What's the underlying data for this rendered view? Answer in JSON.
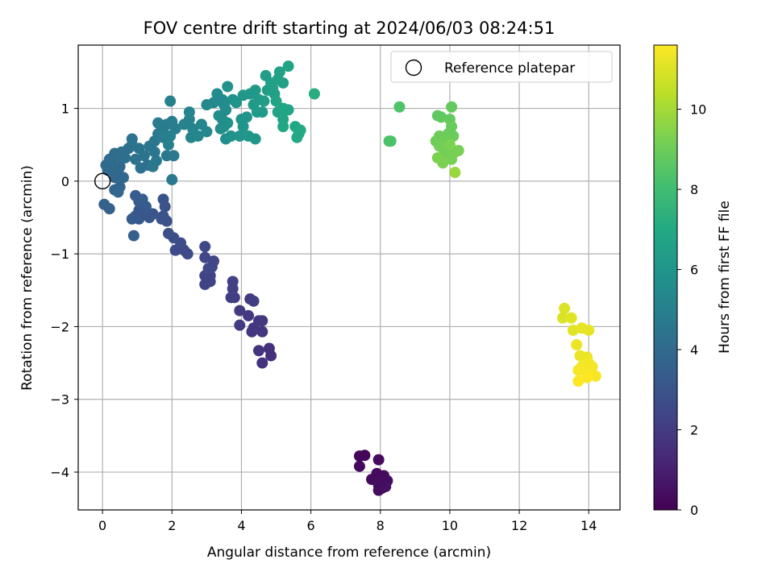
{
  "chart_data": {
    "type": "scatter",
    "title": "FOV centre drift starting at 2024/06/03 08:24:51",
    "xlabel": "Angular distance from reference (arcmin)",
    "ylabel": "Rotation from reference (arcmin)",
    "xlim": [
      -0.7,
      14.9
    ],
    "ylim": [
      -4.52,
      1.87
    ],
    "xticks": [
      0,
      2,
      4,
      6,
      8,
      10,
      12,
      14
    ],
    "yticks": [
      -4,
      -3,
      -2,
      -1,
      0,
      1
    ],
    "grid": true,
    "legend": {
      "placement": "top-right",
      "entries": [
        "Reference platepar"
      ]
    },
    "reference_point": {
      "x": 0,
      "y": 0
    },
    "colorbar": {
      "label": "Hours from first FF file",
      "colormap": "viridis",
      "range": [
        0,
        11.6
      ],
      "ticks": [
        0,
        2,
        4,
        6,
        8,
        10
      ]
    },
    "points": [
      [
        7.4,
        -3.78,
        0.2
      ],
      [
        7.55,
        -3.77,
        0.2
      ],
      [
        7.4,
        -3.92,
        0.3
      ],
      [
        7.95,
        -3.83,
        0.3
      ],
      [
        8.1,
        -4.05,
        0.35
      ],
      [
        7.85,
        -4.08,
        0.3
      ],
      [
        7.75,
        -4.1,
        0.35
      ],
      [
        8.2,
        -4.12,
        0.4
      ],
      [
        7.95,
        -4.18,
        0.4
      ],
      [
        8.05,
        -4.22,
        0.4
      ],
      [
        7.95,
        -4.25,
        0.35
      ],
      [
        8.15,
        -4.2,
        0.45
      ],
      [
        7.9,
        -4.02,
        0.3
      ],
      [
        8.0,
        -4.12,
        0.4
      ],
      [
        4.8,
        -2.3,
        1.6
      ],
      [
        4.85,
        -2.4,
        1.6
      ],
      [
        4.6,
        -2.5,
        1.7
      ],
      [
        4.5,
        -2.33,
        1.7
      ],
      [
        4.6,
        -2.07,
        1.8
      ],
      [
        4.35,
        -2.02,
        1.8
      ],
      [
        4.3,
        -2.07,
        1.8
      ],
      [
        4.5,
        -1.92,
        1.9
      ],
      [
        4.6,
        -1.92,
        1.9
      ],
      [
        4.2,
        -1.85,
        1.9
      ],
      [
        3.95,
        -1.98,
        2.0
      ],
      [
        3.95,
        -1.78,
        2.0
      ],
      [
        4.25,
        -1.62,
        2.0
      ],
      [
        4.35,
        -1.65,
        2.1
      ],
      [
        3.8,
        -1.6,
        2.1
      ],
      [
        3.7,
        -1.6,
        2.1
      ],
      [
        3.75,
        -1.48,
        2.2
      ],
      [
        3.75,
        -1.38,
        2.2
      ],
      [
        3.1,
        -1.3,
        2.3
      ],
      [
        3.1,
        -1.38,
        2.3
      ],
      [
        2.95,
        -1.3,
        2.3
      ],
      [
        2.95,
        -1.42,
        2.3
      ],
      [
        3.2,
        -1.1,
        2.4
      ],
      [
        3.15,
        -1.18,
        2.4
      ],
      [
        2.95,
        -1.05,
        2.4
      ],
      [
        3.05,
        -1.2,
        2.5
      ],
      [
        2.95,
        -0.9,
        2.5
      ],
      [
        2.45,
        -1.0,
        2.6
      ],
      [
        2.35,
        -0.95,
        2.6
      ],
      [
        2.1,
        -0.95,
        2.6
      ],
      [
        2.25,
        -0.85,
        2.7
      ],
      [
        2.05,
        -0.78,
        2.7
      ],
      [
        1.9,
        -0.72,
        2.8
      ],
      [
        1.85,
        -0.55,
        2.9
      ],
      [
        1.75,
        -0.48,
        2.9
      ],
      [
        1.7,
        -0.52,
        3.0
      ],
      [
        1.8,
        -0.35,
        2.9
      ],
      [
        1.75,
        -0.25,
        3.0
      ],
      [
        1.45,
        -0.45,
        3.1
      ],
      [
        1.35,
        -0.5,
        3.1
      ],
      [
        1.15,
        -0.45,
        3.2
      ],
      [
        1.05,
        -0.52,
        3.2
      ],
      [
        0.95,
        -0.48,
        3.3
      ],
      [
        0.85,
        -0.52,
        3.3
      ],
      [
        1.05,
        -0.4,
        3.2
      ],
      [
        1.25,
        -0.35,
        3.3
      ],
      [
        1.05,
        -0.28,
        3.3
      ],
      [
        0.95,
        -0.2,
        3.4
      ],
      [
        1.15,
        -0.25,
        3.4
      ],
      [
        0.9,
        -0.75,
        3.5
      ],
      [
        0.2,
        -0.38,
        3.6
      ],
      [
        0.05,
        -0.32,
        3.6
      ],
      [
        0.35,
        -0.12,
        3.7
      ],
      [
        0.5,
        -0.08,
        3.7
      ],
      [
        0.45,
        -0.15,
        3.8
      ],
      [
        0.35,
        0.05,
        3.8
      ],
      [
        0.45,
        0.12,
        3.9
      ],
      [
        0.6,
        0.05,
        3.9
      ],
      [
        0.5,
        0.2,
        3.9
      ],
      [
        0.3,
        0.22,
        4.0
      ],
      [
        0.15,
        0.15,
        4.0
      ],
      [
        0.1,
        0.22,
        4.0
      ],
      [
        0.2,
        0.3,
        4.1
      ],
      [
        0.35,
        0.38,
        4.1
      ],
      [
        0.45,
        0.35,
        4.1
      ],
      [
        0.55,
        0.4,
        4.2
      ],
      [
        0.65,
        0.32,
        4.2
      ],
      [
        0.75,
        0.45,
        4.2
      ],
      [
        0.85,
        0.5,
        4.3
      ],
      [
        0.95,
        0.3,
        4.3
      ],
      [
        1.1,
        0.18,
        4.3
      ],
      [
        1.3,
        0.22,
        4.3
      ],
      [
        1.2,
        0.35,
        4.4
      ],
      [
        1.05,
        0.45,
        4.4
      ],
      [
        0.85,
        0.58,
        4.4
      ],
      [
        1.35,
        0.48,
        4.5
      ],
      [
        1.5,
        0.55,
        4.5
      ],
      [
        1.5,
        0.4,
        4.5
      ],
      [
        1.55,
        0.28,
        4.6
      ],
      [
        1.45,
        0.2,
        4.6
      ],
      [
        1.85,
        0.35,
        4.6
      ],
      [
        2.05,
        0.35,
        4.7
      ],
      [
        2.0,
        0.02,
        4.7
      ],
      [
        1.6,
        0.65,
        4.7
      ],
      [
        1.75,
        0.68,
        4.8
      ],
      [
        1.6,
        0.8,
        4.8
      ],
      [
        1.85,
        0.78,
        4.8
      ],
      [
        2.0,
        0.82,
        4.9
      ],
      [
        1.75,
        0.6,
        4.9
      ],
      [
        2.1,
        0.72,
        4.9
      ],
      [
        1.95,
        0.62,
        5.0
      ],
      [
        1.9,
        0.5,
        5.0
      ],
      [
        1.95,
        1.1,
        5.0
      ],
      [
        2.35,
        0.78,
        5.1
      ],
      [
        2.5,
        0.85,
        5.1
      ],
      [
        2.5,
        0.95,
        5.2
      ],
      [
        2.6,
        0.72,
        5.2
      ],
      [
        2.55,
        0.6,
        5.2
      ],
      [
        2.75,
        0.62,
        5.3
      ],
      [
        2.85,
        0.78,
        5.3
      ],
      [
        3.0,
        0.68,
        5.3
      ],
      [
        3.0,
        1.05,
        5.4
      ],
      [
        3.2,
        1.08,
        5.4
      ],
      [
        3.3,
        1.2,
        5.5
      ],
      [
        3.45,
        1.12,
        5.5
      ],
      [
        3.5,
        1.05,
        5.5
      ],
      [
        3.55,
        0.98,
        5.6
      ],
      [
        3.45,
        0.85,
        5.6
      ],
      [
        3.35,
        0.9,
        5.6
      ],
      [
        3.4,
        0.72,
        5.7
      ],
      [
        3.5,
        0.75,
        5.7
      ],
      [
        3.55,
        0.58,
        5.7
      ],
      [
        3.7,
        0.62,
        5.8
      ],
      [
        3.6,
        0.8,
        5.8
      ],
      [
        3.75,
        1.12,
        5.8
      ],
      [
        3.6,
        1.3,
        5.9
      ],
      [
        3.85,
        1.08,
        5.9
      ],
      [
        4.0,
        0.85,
        5.9
      ],
      [
        4.15,
        0.88,
        6.0
      ],
      [
        4.05,
        0.75,
        6.0
      ],
      [
        3.95,
        0.62,
        6.0
      ],
      [
        4.2,
        0.62,
        6.1
      ],
      [
        4.4,
        0.58,
        6.1
      ],
      [
        4.05,
        1.18,
        6.1
      ],
      [
        4.25,
        1.2,
        6.2
      ],
      [
        4.4,
        1.25,
        6.2
      ],
      [
        4.35,
        1.05,
        6.2
      ],
      [
        4.5,
        1.12,
        6.3
      ],
      [
        4.45,
        0.95,
        6.3
      ],
      [
        4.6,
        0.95,
        6.3
      ],
      [
        4.65,
        1.1,
        6.4
      ],
      [
        4.75,
        1.25,
        6.4
      ],
      [
        4.7,
        1.45,
        6.4
      ],
      [
        4.85,
        1.35,
        6.5
      ],
      [
        4.9,
        1.28,
        6.5
      ],
      [
        4.95,
        1.2,
        6.5
      ],
      [
        5.05,
        1.4,
        6.6
      ],
      [
        5.1,
        1.5,
        6.6
      ],
      [
        5.2,
        1.35,
        6.6
      ],
      [
        5.35,
        1.58,
        6.7
      ],
      [
        5.0,
        1.1,
        6.7
      ],
      [
        5.05,
        0.95,
        6.7
      ],
      [
        5.2,
        1.0,
        6.8
      ],
      [
        5.35,
        0.98,
        6.8
      ],
      [
        5.2,
        0.85,
        6.8
      ],
      [
        5.2,
        0.75,
        6.9
      ],
      [
        5.55,
        0.75,
        6.9
      ],
      [
        5.65,
        0.65,
        7.0
      ],
      [
        5.6,
        0.6,
        7.0
      ],
      [
        5.7,
        0.7,
        7.0
      ],
      [
        6.1,
        1.2,
        7.2
      ],
      [
        8.3,
        0.55,
        8.3
      ],
      [
        8.25,
        0.55,
        8.3
      ],
      [
        8.55,
        1.02,
        8.4
      ],
      [
        9.65,
        0.9,
        8.7
      ],
      [
        9.75,
        0.88,
        8.7
      ],
      [
        10.05,
        1.02,
        8.8
      ],
      [
        10.0,
        0.85,
        8.8
      ],
      [
        10.05,
        0.75,
        8.9
      ],
      [
        9.95,
        0.65,
        8.9
      ],
      [
        10.1,
        0.62,
        8.9
      ],
      [
        9.85,
        0.6,
        9.0
      ],
      [
        9.7,
        0.62,
        9.0
      ],
      [
        9.6,
        0.55,
        9.0
      ],
      [
        9.7,
        0.48,
        9.1
      ],
      [
        9.85,
        0.42,
        9.1
      ],
      [
        9.9,
        0.35,
        9.1
      ],
      [
        10.05,
        0.3,
        9.2
      ],
      [
        10.15,
        0.4,
        9.2
      ],
      [
        10.25,
        0.42,
        9.2
      ],
      [
        9.8,
        0.25,
        9.3
      ],
      [
        9.65,
        0.32,
        9.3
      ],
      [
        10.0,
        0.5,
        9.3
      ],
      [
        10.15,
        0.12,
        9.8
      ],
      [
        13.3,
        -1.75,
        11.0
      ],
      [
        13.25,
        -1.88,
        11.0
      ],
      [
        13.5,
        -1.88,
        11.1
      ],
      [
        13.55,
        -2.05,
        11.1
      ],
      [
        13.8,
        -2.02,
        11.2
      ],
      [
        14.0,
        -2.05,
        11.2
      ],
      [
        13.65,
        -2.25,
        11.3
      ],
      [
        13.75,
        -2.4,
        11.3
      ],
      [
        13.95,
        -2.42,
        11.3
      ],
      [
        14.0,
        -2.5,
        11.4
      ],
      [
        14.1,
        -2.55,
        11.4
      ],
      [
        13.8,
        -2.55,
        11.4
      ],
      [
        13.7,
        -2.6,
        11.5
      ],
      [
        13.9,
        -2.62,
        11.5
      ],
      [
        14.05,
        -2.65,
        11.5
      ],
      [
        14.2,
        -2.68,
        11.5
      ],
      [
        13.7,
        -2.75,
        11.6
      ],
      [
        13.95,
        -2.7,
        11.6
      ]
    ]
  }
}
